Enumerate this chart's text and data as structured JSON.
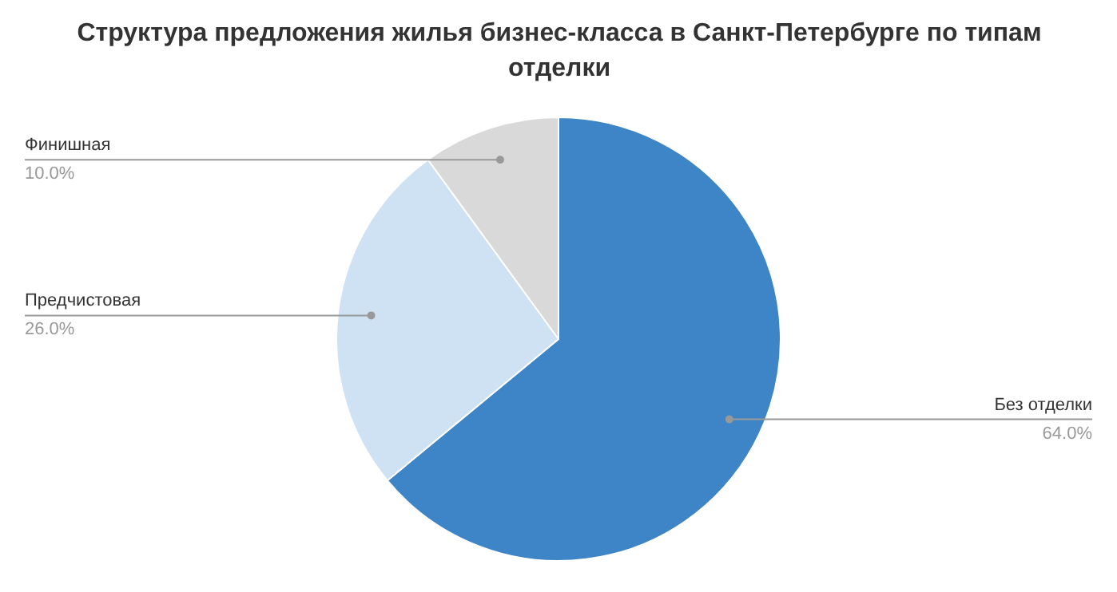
{
  "chart_data": {
    "type": "pie",
    "title": "Структура предложения жилья бизнес-класса в Санкт-Петербурге по типам отделки",
    "categories": [
      "Без отделки",
      "Предчистовая",
      "Финишная"
    ],
    "values": [
      64,
      26,
      10
    ],
    "colors": [
      "#3d85c6",
      "#cfe2f3",
      "#d9d9d9"
    ],
    "value_labels": [
      "64.0%",
      "26.0%",
      "10.0%"
    ]
  }
}
